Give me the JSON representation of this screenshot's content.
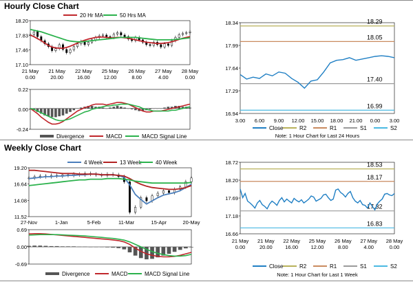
{
  "titles": {
    "hourly": "Hourly Close Chart",
    "weekly": "Weekly Close Chart"
  },
  "chart_data": [
    {
      "id": "hourly-price",
      "type": "candlestick",
      "ylim": [
        17.1,
        18.2
      ],
      "yticks": [
        "18.20",
        "17.83",
        "17.46",
        "17.10"
      ],
      "xticks": [
        [
          "21 May",
          "0.00"
        ],
        [
          "21 May",
          "20.00"
        ],
        [
          "22 May",
          "16.00"
        ],
        [
          "25 May",
          "12.00"
        ],
        [
          "26 May",
          "8.00"
        ],
        [
          "27 May",
          "4.00"
        ],
        [
          "28 May",
          "0.00"
        ]
      ],
      "legend": [
        {
          "name": "20 Hr MA",
          "color": "#c0262b"
        },
        {
          "name": "50 Hrs MA",
          "color": "#2bb24c"
        }
      ],
      "close": [
        17.85,
        17.92,
        17.8,
        17.7,
        17.62,
        17.55,
        17.45,
        17.5,
        17.6,
        17.48,
        17.4,
        17.47,
        17.55,
        17.62,
        17.68,
        17.6,
        17.66,
        17.72,
        17.78,
        17.82,
        17.84,
        17.8,
        17.78,
        17.86,
        17.9,
        17.84,
        17.8,
        17.74,
        17.7,
        17.78,
        17.72,
        17.66,
        17.6,
        17.58,
        17.66,
        17.6,
        17.54,
        17.62,
        17.58,
        17.7,
        17.78,
        17.85,
        17.88,
        17.9,
        17.92
      ],
      "ma20": [
        17.84,
        17.8,
        17.75,
        17.7,
        17.64,
        17.58,
        17.54,
        17.52,
        17.51,
        17.51,
        17.53,
        17.56,
        17.6,
        17.64,
        17.68,
        17.71,
        17.74,
        17.76,
        17.78,
        17.79,
        17.79,
        17.78,
        17.77,
        17.77,
        17.78,
        17.78,
        17.77,
        17.76,
        17.74,
        17.72,
        17.7,
        17.68,
        17.66,
        17.65,
        17.64,
        17.63,
        17.63,
        17.64,
        17.65,
        17.67,
        17.7,
        17.73,
        17.76,
        17.78,
        17.8
      ],
      "ma50": [
        17.98,
        17.96,
        17.94,
        17.92,
        17.89,
        17.86,
        17.83,
        17.8,
        17.77,
        17.74,
        17.71,
        17.69,
        17.68,
        17.67,
        17.67,
        17.68,
        17.69,
        17.7,
        17.71,
        17.72,
        17.73,
        17.74,
        17.75,
        17.76,
        17.77,
        17.78,
        17.78,
        17.78,
        17.78,
        17.78,
        17.77,
        17.76,
        17.75,
        17.74,
        17.73,
        17.72,
        17.72,
        17.72,
        17.72,
        17.72,
        17.73,
        17.74,
        17.75,
        17.76,
        17.77
      ]
    },
    {
      "id": "hourly-macd",
      "type": "macd",
      "ylim": [
        -0.24,
        0.22
      ],
      "yticks": [
        "0.22",
        "0.00",
        "-0.24"
      ],
      "legend": [
        {
          "name": "Divergence",
          "color": "#555555"
        },
        {
          "name": "MACD",
          "color": "#c0262b"
        },
        {
          "name": "MACD Signal Line",
          "color": "#2bb24c"
        }
      ],
      "divergence": [
        0,
        -0.02,
        -0.04,
        -0.06,
        -0.08,
        -0.09,
        -0.1,
        -0.1,
        -0.09,
        -0.08,
        -0.06,
        -0.04,
        -0.02,
        0.0,
        0.01,
        0.02,
        0.03,
        0.03,
        0.02,
        0.02,
        0.01,
        0.0,
        0.01,
        0.02,
        0.03,
        0.02,
        0.01,
        0.0,
        -0.01,
        -0.02,
        -0.03,
        -0.03,
        -0.02,
        -0.01,
        0.0,
        0.0,
        0.0,
        0.01,
        0.02,
        0.02,
        0.03,
        0.03,
        0.02,
        0.02,
        0.01
      ],
      "macd": [
        0.0,
        -0.03,
        -0.06,
        -0.1,
        -0.13,
        -0.16,
        -0.18,
        -0.18,
        -0.17,
        -0.15,
        -0.12,
        -0.09,
        -0.06,
        -0.03,
        -0.01,
        0.01,
        0.02,
        0.04,
        0.05,
        0.05,
        0.05,
        0.04,
        0.05,
        0.06,
        0.07,
        0.07,
        0.06,
        0.05,
        0.03,
        0.01,
        -0.01,
        -0.03,
        -0.04,
        -0.04,
        -0.03,
        -0.03,
        -0.03,
        -0.02,
        -0.01,
        0.0,
        0.01,
        0.02,
        0.03,
        0.04,
        0.05
      ],
      "signal": [
        0.0,
        -0.01,
        -0.03,
        -0.05,
        -0.07,
        -0.09,
        -0.11,
        -0.13,
        -0.14,
        -0.14,
        -0.13,
        -0.12,
        -0.1,
        -0.08,
        -0.06,
        -0.04,
        -0.03,
        -0.01,
        0.0,
        0.01,
        0.02,
        0.03,
        0.03,
        0.04,
        0.04,
        0.05,
        0.05,
        0.05,
        0.04,
        0.03,
        0.02,
        0.0,
        -0.01,
        -0.02,
        -0.03,
        -0.03,
        -0.03,
        -0.03,
        -0.03,
        -0.02,
        -0.02,
        -0.01,
        0.0,
        0.01,
        0.02
      ]
    },
    {
      "id": "hourly-close",
      "type": "line",
      "ylim": [
        16.94,
        18.34
      ],
      "yticks": [
        "18.34",
        "17.99",
        "17.64",
        "17.29",
        "16.94"
      ],
      "xticks": [
        "3.00",
        "6.00",
        "9.00",
        "12.00",
        "15.00",
        "18.00",
        "21.00",
        "0.00",
        "3.00"
      ],
      "close": [
        17.54,
        17.47,
        17.5,
        17.48,
        17.55,
        17.52,
        17.58,
        17.56,
        17.48,
        17.42,
        17.33,
        17.44,
        17.46,
        17.58,
        17.72,
        17.76,
        17.77,
        17.8,
        17.76,
        17.78,
        17.8,
        17.82,
        17.83,
        17.82,
        17.8
      ],
      "levels": [
        {
          "name": "R2",
          "value": 18.29,
          "label": "18.29",
          "color": "#b8b15a"
        },
        {
          "name": "R1",
          "value": 18.05,
          "label": "18.05",
          "color": "#c98a5e"
        },
        {
          "name": "S1",
          "value": 17.4,
          "label": "17.40",
          "color": "#9a9a9a"
        },
        {
          "name": "S2",
          "value": 16.99,
          "label": "16.99",
          "color": "#49b9e2"
        }
      ],
      "legend": [
        {
          "name": "Close",
          "color": "#1f7fc4"
        },
        {
          "name": "R2",
          "color": "#b8b15a"
        },
        {
          "name": "R1",
          "color": "#c98a5e"
        },
        {
          "name": "S1",
          "color": "#9a9a9a"
        },
        {
          "name": "S2",
          "color": "#49b9e2"
        }
      ],
      "note": "Note: 1 Hour Chart for Last 24 Hours"
    },
    {
      "id": "weekly-price",
      "type": "candlestick",
      "ylim": [
        11.52,
        19.2
      ],
      "yticks": [
        "19.20",
        "16.64",
        "14.08",
        "11.52"
      ],
      "xticks": [
        "27-Nov",
        "1-Jan",
        "5-Feb",
        "11-Mar",
        "15-Apr",
        "20-May"
      ],
      "legend": [
        {
          "name": "4 Week",
          "color": "#4a7ebb"
        },
        {
          "name": "13 Week",
          "color": "#b22222"
        },
        {
          "name": "40 Week",
          "color": "#2bb24c"
        }
      ],
      "close": [
        17.6,
        17.8,
        17.9,
        17.8,
        18.0,
        17.9,
        18.1,
        18.0,
        18.2,
        18.1,
        18.3,
        18.2,
        18.1,
        18.0,
        18.2,
        18.1,
        17.8,
        17.0,
        12.2,
        13.0,
        14.5,
        14.0,
        14.8,
        15.2,
        15.6,
        15.3,
        15.8,
        16.2,
        17.0,
        17.6
      ],
      "ma4": [
        17.5,
        17.6,
        17.7,
        17.8,
        17.8,
        17.9,
        17.9,
        18.0,
        18.0,
        18.1,
        18.1,
        18.2,
        18.2,
        18.1,
        18.1,
        18.1,
        18.0,
        17.7,
        16.5,
        15.0,
        14.2,
        13.5,
        14.0,
        14.5,
        14.9,
        15.1,
        15.3,
        15.6,
        16.1,
        16.6
      ],
      "ma13": [
        18.8,
        18.8,
        18.7,
        18.6,
        18.5,
        18.4,
        18.3,
        18.3,
        18.3,
        18.2,
        18.2,
        18.2,
        18.2,
        18.1,
        18.1,
        18.1,
        18.0,
        17.9,
        17.5,
        17.0,
        16.6,
        16.3,
        16.1,
        16.0,
        15.9,
        15.8,
        15.8,
        15.9,
        16.1,
        16.4
      ],
      "ma40": [
        16.4,
        16.5,
        16.6,
        16.7,
        16.8,
        16.9,
        17.0,
        17.1,
        17.2,
        17.3,
        17.3,
        17.4,
        17.4,
        17.4,
        17.5,
        17.5,
        17.5,
        17.4,
        17.3,
        17.1,
        17.0,
        16.9,
        16.8,
        16.8,
        16.8,
        16.8,
        16.8,
        16.8,
        16.8,
        16.9
      ]
    },
    {
      "id": "weekly-macd",
      "type": "macd",
      "ylim": [
        -0.69,
        0.69
      ],
      "yticks": [
        "0.69",
        "0.00",
        "-0.69"
      ],
      "legend": [
        {
          "name": "Divergence",
          "color": "#555555"
        },
        {
          "name": "MACD",
          "color": "#c0262b"
        },
        {
          "name": "MACD Signal Line",
          "color": "#2bb24c"
        }
      ],
      "divergence": [
        0.04,
        0.05,
        0.05,
        0.04,
        0.03,
        0.03,
        0.02,
        0.02,
        0.02,
        0.01,
        0.01,
        0.0,
        0.0,
        -0.01,
        -0.02,
        -0.03,
        -0.05,
        -0.1,
        -0.22,
        -0.35,
        -0.45,
        -0.5,
        -0.48,
        -0.42,
        -0.35,
        -0.28,
        -0.2,
        -0.12,
        -0.06,
        -0.02
      ],
      "macd": [
        0.52,
        0.53,
        0.53,
        0.52,
        0.5,
        0.48,
        0.46,
        0.44,
        0.42,
        0.4,
        0.38,
        0.36,
        0.34,
        0.32,
        0.3,
        0.28,
        0.25,
        0.2,
        0.1,
        -0.05,
        -0.18,
        -0.28,
        -0.34,
        -0.38,
        -0.4,
        -0.4,
        -0.38,
        -0.34,
        -0.28,
        -0.22
      ],
      "signal": [
        0.47,
        0.48,
        0.49,
        0.49,
        0.49,
        0.49,
        0.48,
        0.47,
        0.46,
        0.45,
        0.44,
        0.42,
        0.4,
        0.38,
        0.36,
        0.34,
        0.31,
        0.27,
        0.2,
        0.1,
        0.0,
        -0.1,
        -0.19,
        -0.26,
        -0.31,
        -0.35,
        -0.37,
        -0.37,
        -0.35,
        -0.3
      ]
    },
    {
      "id": "weekly-close",
      "type": "line",
      "ylim": [
        16.66,
        18.72
      ],
      "yticks": [
        "18.72",
        "18.20",
        "17.69",
        "17.18",
        "16.66"
      ],
      "xticks": [
        [
          "21 May",
          "0.00"
        ],
        [
          "21 May",
          "20.00"
        ],
        [
          "22 May",
          "16.00"
        ],
        [
          "25 May",
          "12.00"
        ],
        [
          "26 May",
          "8.00"
        ],
        [
          "27 May",
          "4.00"
        ],
        [
          "28 May",
          "0.00"
        ]
      ],
      "close": [
        17.95,
        17.7,
        17.82,
        17.6,
        17.55,
        17.48,
        17.4,
        17.55,
        17.62,
        17.5,
        17.45,
        17.38,
        17.52,
        17.6,
        17.55,
        17.48,
        17.62,
        17.7,
        17.58,
        17.66,
        17.6,
        17.55,
        17.68,
        17.62,
        17.58,
        17.64,
        17.55,
        17.6,
        17.66,
        17.75,
        17.72,
        17.6,
        17.64,
        17.68,
        17.78,
        17.8,
        17.7,
        17.62,
        17.66,
        17.92,
        17.95,
        17.85,
        17.8,
        17.72,
        17.82,
        17.88,
        17.7,
        17.6,
        17.55,
        17.62,
        17.5,
        17.48,
        17.4,
        17.55,
        17.45,
        17.35,
        17.52,
        17.6,
        17.66,
        17.8,
        17.82,
        17.78,
        17.76,
        17.82
      ],
      "levels": [
        {
          "name": "R2",
          "value": 18.53,
          "label": "18.53",
          "color": "#b8b15a"
        },
        {
          "name": "R1",
          "value": 18.17,
          "label": "18.17",
          "color": "#c98a5e"
        },
        {
          "name": "S1",
          "value": 17.32,
          "label": "17.32",
          "color": "#9a9a9a"
        },
        {
          "name": "S2",
          "value": 16.83,
          "label": "16.83",
          "color": "#49b9e2"
        }
      ],
      "legend": [
        {
          "name": "Close",
          "color": "#1f7fc4"
        },
        {
          "name": "R2",
          "color": "#b8b15a"
        },
        {
          "name": "R1",
          "color": "#c98a5e"
        },
        {
          "name": "S1",
          "color": "#9a9a9a"
        },
        {
          "name": "S2",
          "color": "#49b9e2"
        }
      ],
      "note": "Note: 1 Hour Chart for Last 1 Week"
    }
  ]
}
